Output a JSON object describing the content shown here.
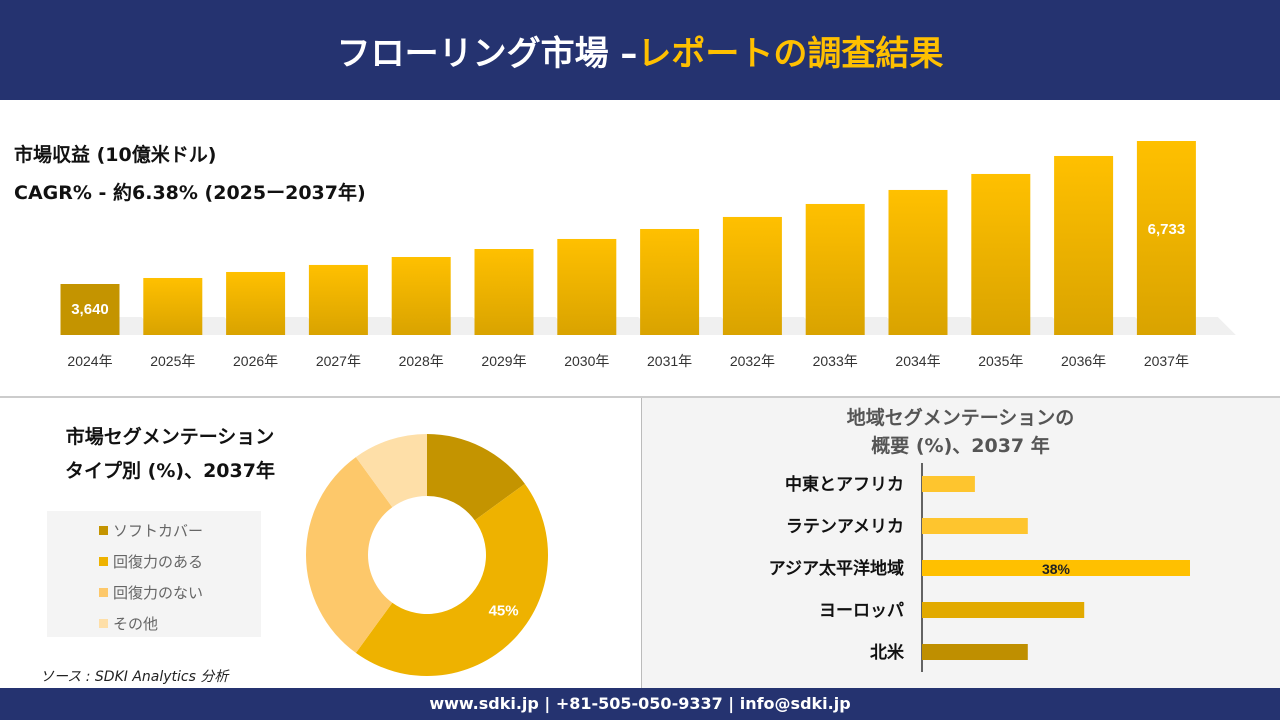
{
  "header": {
    "title_main": "フローリング市場 –",
    "title_highlight": "レポートの調査結果"
  },
  "revenue": {
    "title": "市場収益 (10億米ドル)",
    "cagr": "CAGR% - 約6.38% (2025ー2037年)"
  },
  "type_segment": {
    "title_line1": "市場セグメンテーション",
    "title_line2": "タイプ別 (%)、2037年"
  },
  "region_segment": {
    "title_line1": "地域セグメンテーションの",
    "title_line2": "概要 (%)、2037 年"
  },
  "source": "ソース : SDKI Analytics 分析",
  "footer": "www.sdki.jp | +81-505-050-9337 | info@sdki.jp",
  "chart_data": [
    {
      "type": "bar",
      "title": "市場収益 (10億米ドル)",
      "categories": [
        "2024年",
        "2025年",
        "2026年",
        "2027年",
        "2028年",
        "2029年",
        "2030年",
        "2031年",
        "2032年",
        "2033年",
        "2034年",
        "2035年",
        "2036年",
        "2037年"
      ],
      "values": [
        3640,
        3770,
        3900,
        4052,
        4224,
        4397,
        4614,
        4830,
        5090,
        5371,
        5674,
        6020,
        6409,
        6733
      ],
      "data_labels": {
        "0": "3,640",
        "13": "6,733"
      },
      "grid": false
    },
    {
      "type": "pie",
      "donut": true,
      "title": "市場セグメンテーション タイプ別 (%)、2037年",
      "categories": [
        "ソフトカバー",
        "回復力のある",
        "回復力のない",
        "その他"
      ],
      "values": [
        15,
        45,
        30,
        10
      ],
      "colors": [
        "#c49400",
        "#eeb200",
        "#fdc86a",
        "#fedfa8"
      ],
      "data_labels": {
        "1": "45%"
      },
      "legend": "left"
    },
    {
      "type": "bar",
      "orientation": "horizontal",
      "title": "地域セグメンテーションの概要 (%)、2037 年",
      "categories": [
        "中東とアフリカ",
        "ラテンアメリカ",
        "アジア太平洋地域",
        "ヨーロッパ",
        "北米"
      ],
      "values": [
        7.5,
        15,
        38,
        23,
        15
      ],
      "colors": [
        "#fec52e",
        "#fec52e",
        "#ffc000",
        "#e2aa00",
        "#bf8f00"
      ],
      "data_labels": {
        "2": "38%"
      },
      "grid": false
    }
  ]
}
